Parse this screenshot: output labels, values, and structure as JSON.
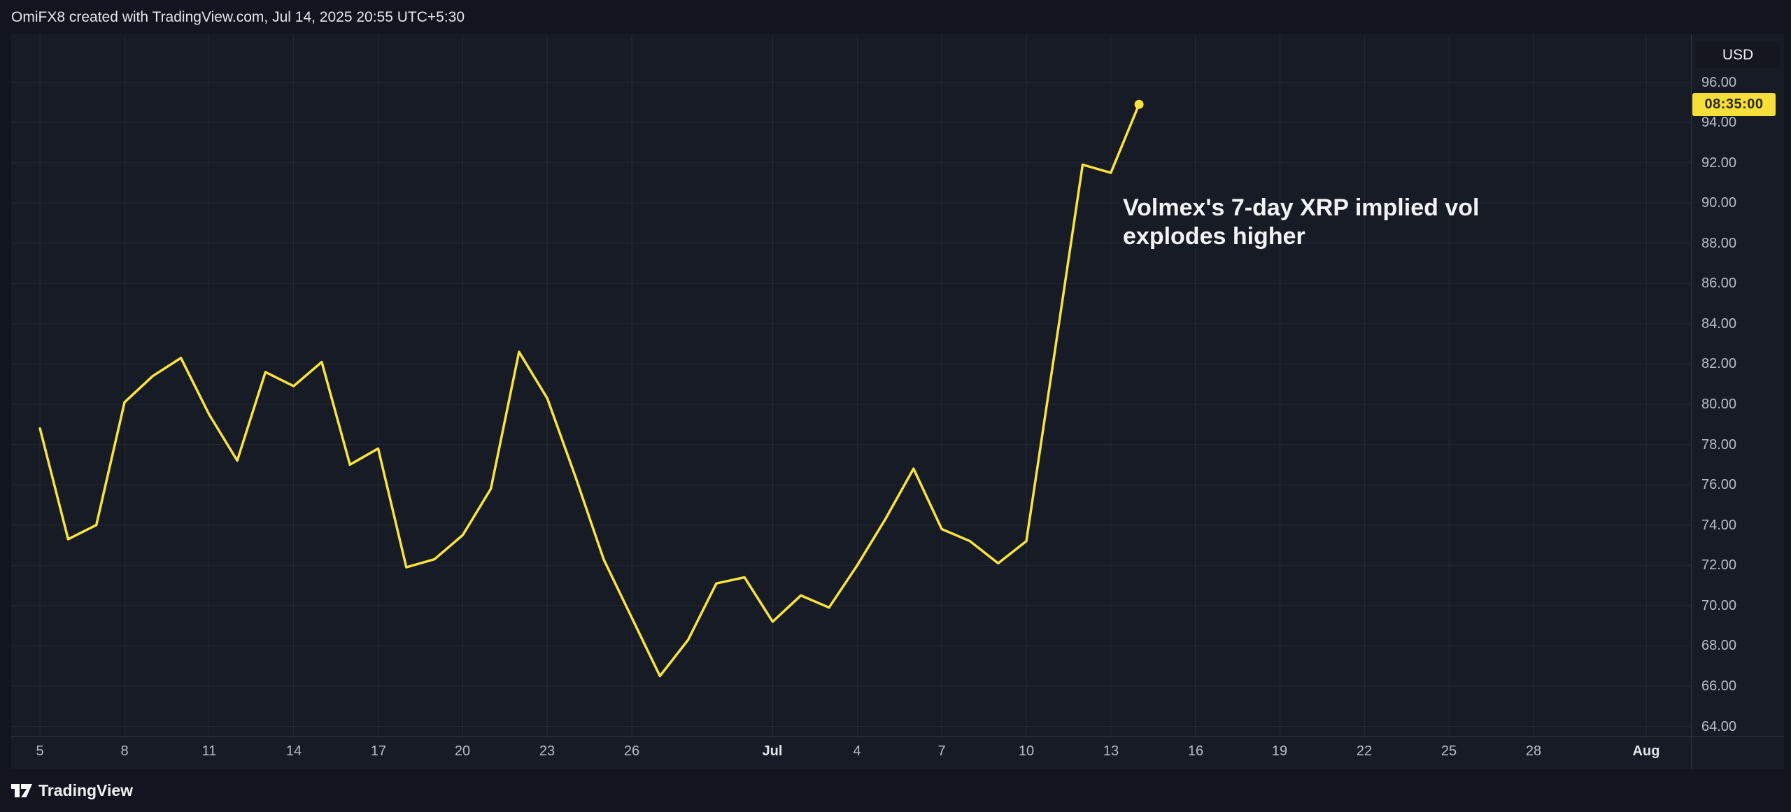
{
  "header": {
    "attribution": "OmiFX8 created with TradingView.com, Jul 14, 2025 20:55 UTC+5:30"
  },
  "annotation": {
    "line1": "Volmex's 7-day XRP implied vol",
    "line2": "explodes higher"
  },
  "price_axis": {
    "currency_label": "USD",
    "countdown_label": "08:35:00",
    "countdown_bg": "#F6DF3A",
    "countdown_text_color": "#2E2A06"
  },
  "footer": {
    "brand": "TradingView"
  },
  "colors": {
    "background": "#12151F",
    "pane_background": "#171B26",
    "line": "#F8E33F",
    "axis_text": "#B9BDC7",
    "axis_text_emphasis": "#E2E4E9",
    "grid": "rgba(255,255,255,0.06)",
    "annotation_text": "#F2F3F5"
  },
  "chart_data": {
    "type": "line",
    "title": "Volmex's 7-day XRP implied vol explodes higher",
    "unit": "USD",
    "legend_position": "none",
    "grid": true,
    "y_axis": {
      "visible_range": [
        63.5,
        98.4
      ],
      "tick_step": 2,
      "ticks": [
        {
          "label": "96.00",
          "value": 96
        },
        {
          "label": "94.00",
          "value": 94
        },
        {
          "label": "92.00",
          "value": 92
        },
        {
          "label": "90.00",
          "value": 90
        },
        {
          "label": "88.00",
          "value": 88
        },
        {
          "label": "86.00",
          "value": 86
        },
        {
          "label": "84.00",
          "value": 84
        },
        {
          "label": "82.00",
          "value": 82
        },
        {
          "label": "80.00",
          "value": 80
        },
        {
          "label": "78.00",
          "value": 78
        },
        {
          "label": "76.00",
          "value": 76
        },
        {
          "label": "74.00",
          "value": 74
        },
        {
          "label": "72.00",
          "value": 72
        },
        {
          "label": "70.00",
          "value": 70
        },
        {
          "label": "68.00",
          "value": 68
        },
        {
          "label": "66.00",
          "value": 66
        },
        {
          "label": "64.00",
          "value": 64
        }
      ]
    },
    "x_axis": {
      "start_date": "Jun 5",
      "ticks": [
        {
          "label": "5",
          "day": 0,
          "emphasis": false
        },
        {
          "label": "8",
          "day": 3,
          "emphasis": false
        },
        {
          "label": "11",
          "day": 6,
          "emphasis": false
        },
        {
          "label": "14",
          "day": 9,
          "emphasis": false
        },
        {
          "label": "17",
          "day": 12,
          "emphasis": false
        },
        {
          "label": "20",
          "day": 15,
          "emphasis": false
        },
        {
          "label": "23",
          "day": 18,
          "emphasis": false
        },
        {
          "label": "26",
          "day": 21,
          "emphasis": false
        },
        {
          "label": "Jul",
          "day": 26,
          "emphasis": true
        },
        {
          "label": "4",
          "day": 29,
          "emphasis": false
        },
        {
          "label": "7",
          "day": 32,
          "emphasis": false
        },
        {
          "label": "10",
          "day": 35,
          "emphasis": false
        },
        {
          "label": "13",
          "day": 38,
          "emphasis": false
        },
        {
          "label": "16",
          "day": 41,
          "emphasis": false
        },
        {
          "label": "19",
          "day": 44,
          "emphasis": false
        },
        {
          "label": "22",
          "day": 47,
          "emphasis": false
        },
        {
          "label": "25",
          "day": 50,
          "emphasis": false
        },
        {
          "label": "28",
          "day": 53,
          "emphasis": false
        },
        {
          "label": "Aug",
          "day": 57,
          "emphasis": true
        }
      ]
    },
    "series": [
      {
        "name": "Volmex 7-day XRP implied volatility",
        "color": "#F8E33F",
        "points": [
          {
            "date": "Jun 5",
            "day": 0,
            "value": 78.8
          },
          {
            "date": "Jun 6",
            "day": 1,
            "value": 73.3
          },
          {
            "date": "Jun 7",
            "day": 2,
            "value": 74.0
          },
          {
            "date": "Jun 8",
            "day": 3,
            "value": 80.1
          },
          {
            "date": "Jun 9",
            "day": 4,
            "value": 81.4
          },
          {
            "date": "Jun 10",
            "day": 5,
            "value": 82.3
          },
          {
            "date": "Jun 11",
            "day": 6,
            "value": 79.5
          },
          {
            "date": "Jun 12",
            "day": 7,
            "value": 77.2
          },
          {
            "date": "Jun 13",
            "day": 8,
            "value": 81.6
          },
          {
            "date": "Jun 14",
            "day": 9,
            "value": 80.9
          },
          {
            "date": "Jun 15",
            "day": 10,
            "value": 82.1
          },
          {
            "date": "Jun 16",
            "day": 11,
            "value": 77.0
          },
          {
            "date": "Jun 17",
            "day": 12,
            "value": 77.8
          },
          {
            "date": "Jun 18",
            "day": 13,
            "value": 71.9
          },
          {
            "date": "Jun 19",
            "day": 14,
            "value": 72.3
          },
          {
            "date": "Jun 20",
            "day": 15,
            "value": 73.5
          },
          {
            "date": "Jun 21",
            "day": 16,
            "value": 75.8
          },
          {
            "date": "Jun 22",
            "day": 17,
            "value": 82.6
          },
          {
            "date": "Jun 23",
            "day": 18,
            "value": 80.3
          },
          {
            "date": "Jun 24",
            "day": 19,
            "value": 76.4
          },
          {
            "date": "Jun 25",
            "day": 20,
            "value": 72.3
          },
          {
            "date": "Jun 26",
            "day": 21,
            "value": 69.4
          },
          {
            "date": "Jun 27",
            "day": 22,
            "value": 66.5
          },
          {
            "date": "Jun 28",
            "day": 23,
            "value": 68.3
          },
          {
            "date": "Jun 29",
            "day": 24,
            "value": 71.1
          },
          {
            "date": "Jun 30",
            "day": 25,
            "value": 71.4
          },
          {
            "date": "Jul 1",
            "day": 26,
            "value": 69.2
          },
          {
            "date": "Jul 2",
            "day": 27,
            "value": 70.5
          },
          {
            "date": "Jul 3",
            "day": 28,
            "value": 69.9
          },
          {
            "date": "Jul 4",
            "day": 29,
            "value": 72.0
          },
          {
            "date": "Jul 5",
            "day": 30,
            "value": 74.3
          },
          {
            "date": "Jul 6",
            "day": 31,
            "value": 76.8
          },
          {
            "date": "Jul 7",
            "day": 32,
            "value": 73.8
          },
          {
            "date": "Jul 8",
            "day": 33,
            "value": 73.2
          },
          {
            "date": "Jul 9",
            "day": 34,
            "value": 72.1
          },
          {
            "date": "Jul 10",
            "day": 35,
            "value": 73.2
          },
          {
            "date": "Jul 11",
            "day": 36,
            "value": 82.5
          },
          {
            "date": "Jul 12",
            "day": 37,
            "value": 91.9
          },
          {
            "date": "Jul 13",
            "day": 38,
            "value": 91.5
          },
          {
            "date": "Jul 14",
            "day": 39,
            "value": 94.9
          }
        ]
      }
    ],
    "last_point": {
      "date": "Jul 14",
      "value": 94.9,
      "marker": true,
      "axis_label": "08:35:00"
    }
  }
}
